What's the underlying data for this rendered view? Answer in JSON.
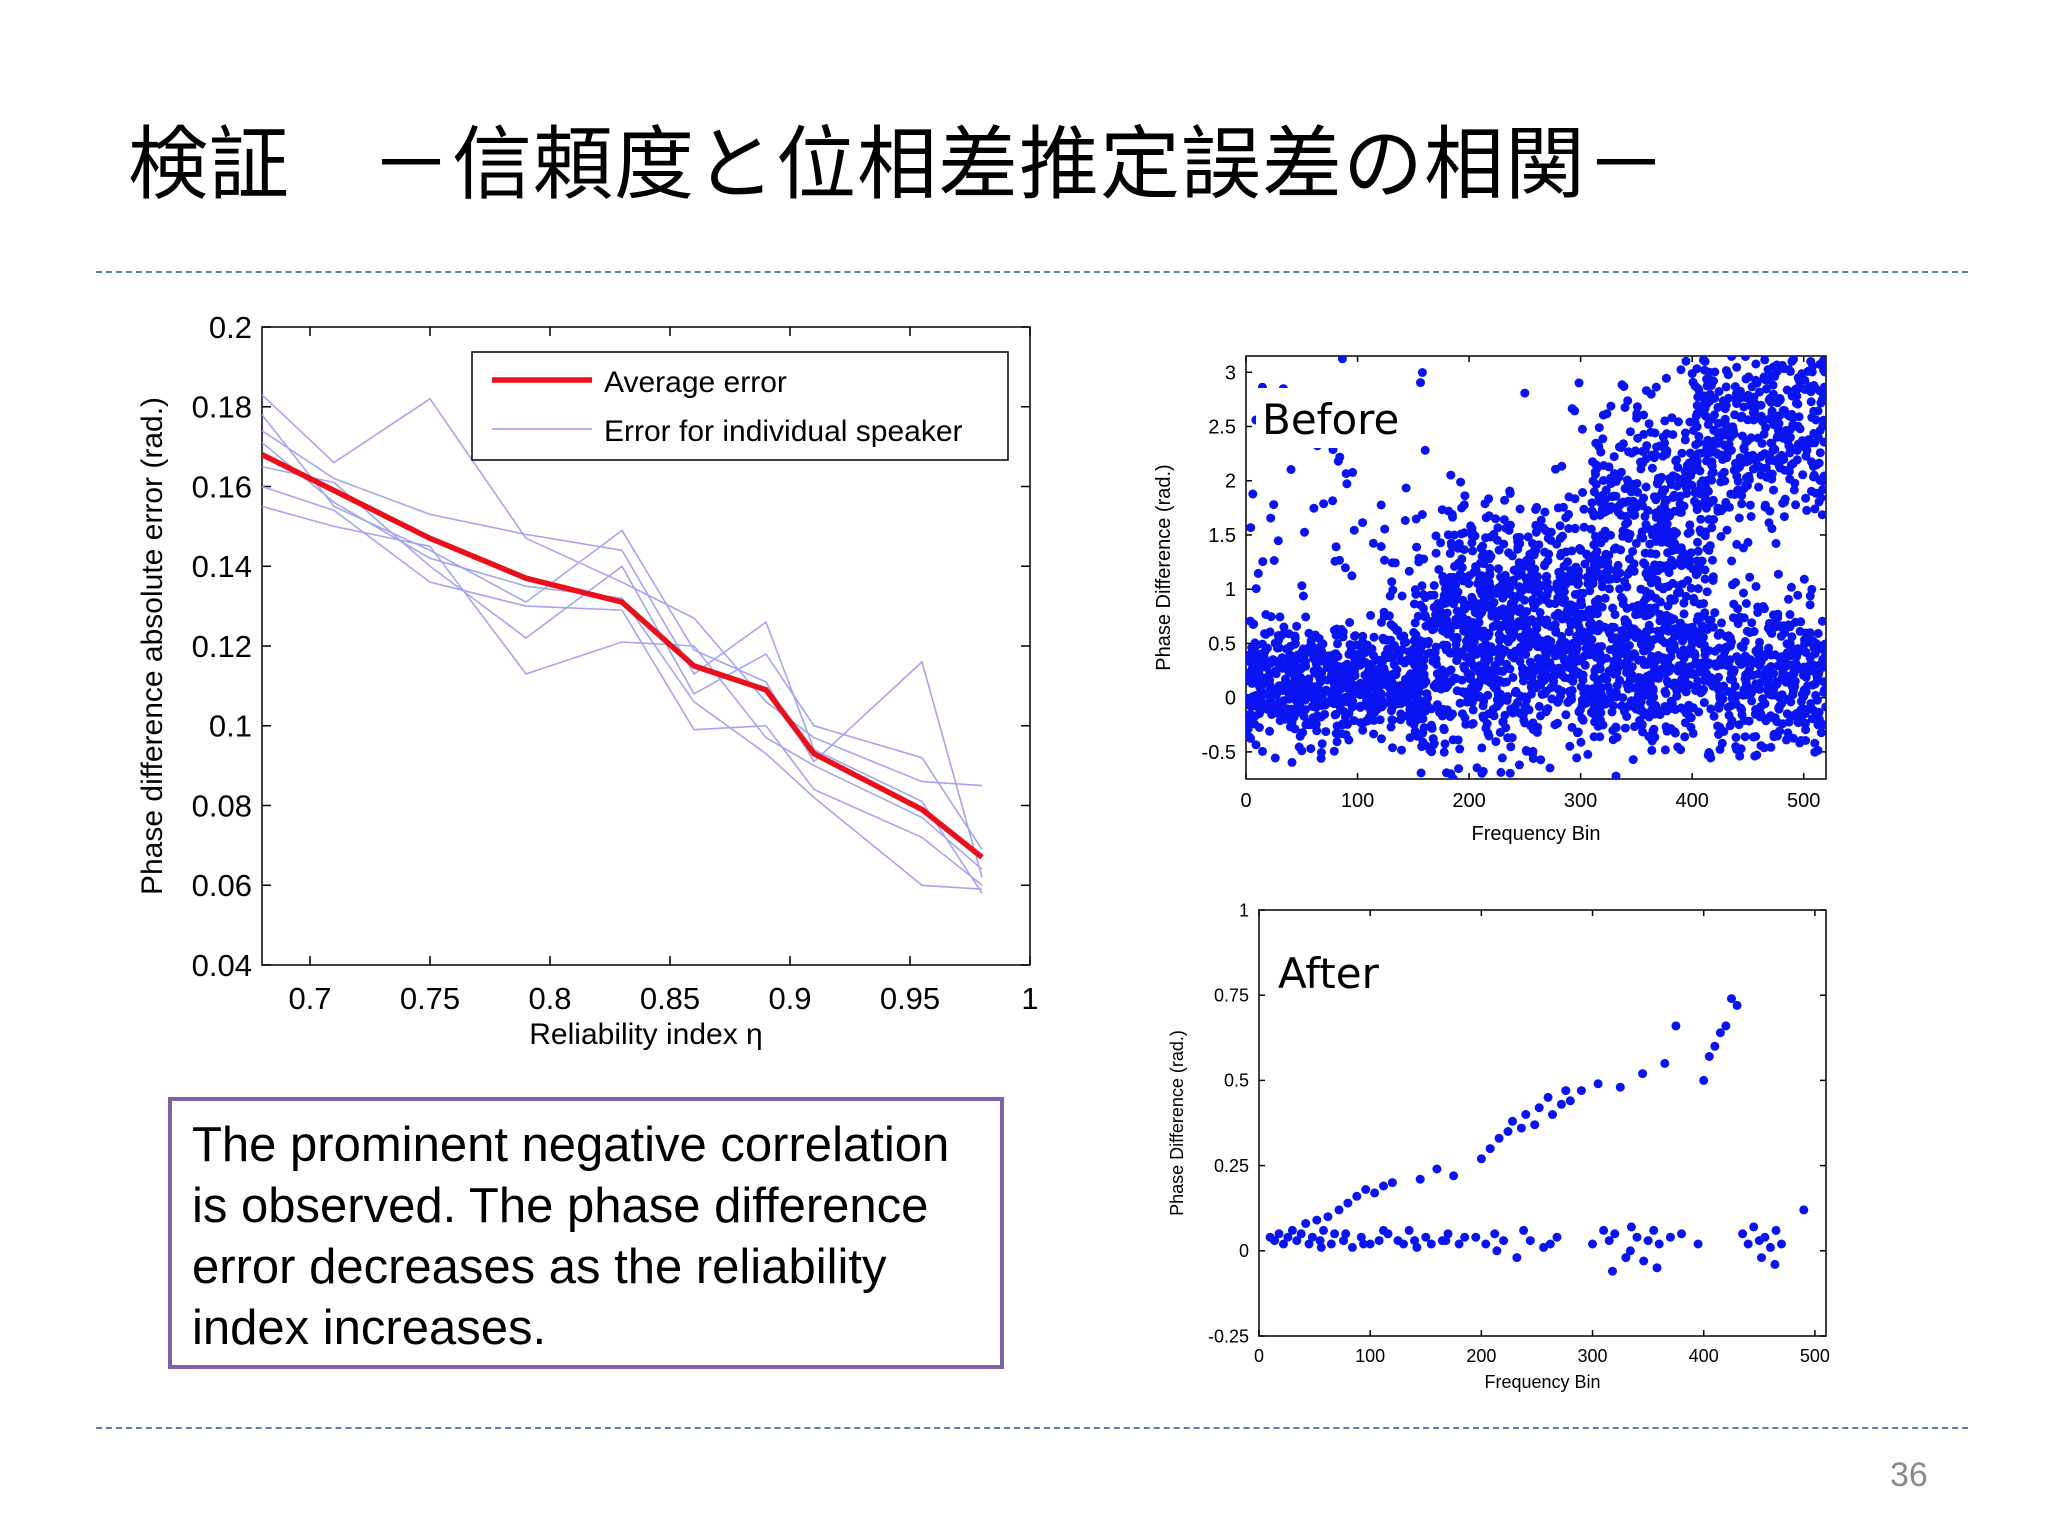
{
  "slide": {
    "title": "検証　－信頼度と位相差推定誤差の相関－",
    "callout_text": "The prominent negative correlation is observed. The phase difference error decreases as the reliability index increases.",
    "page_number": "36"
  },
  "colors": {
    "average_line": "#e8101a",
    "individual_lines": "#a3a6ee",
    "scatter_points": "#0a14f0",
    "callout_border": "#7e62a3",
    "divider": "#5b7fa6"
  },
  "chart_data": [
    {
      "type": "line",
      "title": "",
      "xlabel": "Reliability index η",
      "ylabel": "Phase difference absolute error (rad.)",
      "xlim": [
        0.68,
        1.0
      ],
      "ylim": [
        0.04,
        0.2
      ],
      "xticks": [
        0.7,
        0.75,
        0.8,
        0.85,
        0.9,
        0.95,
        1.0
      ],
      "xtick_labels": [
        "0.7",
        "0.75",
        "0.8",
        "0.85",
        "0.9",
        "0.95",
        "1"
      ],
      "yticks": [
        0.04,
        0.06,
        0.08,
        0.1,
        0.12,
        0.14,
        0.16,
        0.18,
        0.2
      ],
      "ytick_labels": [
        "0.04",
        "0.06",
        "0.08",
        "0.1",
        "0.12",
        "0.14",
        "0.16",
        "0.18",
        "0.2"
      ],
      "legend_position": "top-right",
      "x": [
        0.68,
        0.71,
        0.75,
        0.79,
        0.83,
        0.86,
        0.89,
        0.91,
        0.955,
        0.98
      ],
      "series": [
        {
          "name": "Average error",
          "role": "average",
          "values": [
            0.168,
            0.159,
            0.147,
            0.137,
            0.131,
            0.115,
            0.109,
            0.093,
            0.079,
            0.067
          ]
        },
        {
          "name": "Error for individual speaker",
          "role": "individual",
          "values": [
            0.183,
            0.166,
            0.182,
            0.147,
            0.136,
            0.127,
            0.106,
            0.097,
            0.086,
            0.085
          ]
        },
        {
          "name": "",
          "role": "individual",
          "values": [
            0.174,
            0.162,
            0.153,
            0.148,
            0.144,
            0.113,
            0.126,
            0.094,
            0.081,
            0.058
          ]
        },
        {
          "name": "",
          "role": "individual",
          "values": [
            0.165,
            0.161,
            0.14,
            0.122,
            0.14,
            0.108,
            0.118,
            0.1,
            0.092,
            0.069
          ]
        },
        {
          "name": "",
          "role": "individual",
          "values": [
            0.178,
            0.155,
            0.144,
            0.131,
            0.149,
            0.119,
            0.111,
            0.091,
            0.116,
            0.062
          ]
        },
        {
          "name": "",
          "role": "individual",
          "values": [
            0.16,
            0.154,
            0.136,
            0.13,
            0.129,
            0.099,
            0.1,
            0.084,
            0.072,
            0.06
          ]
        },
        {
          "name": "",
          "role": "individual",
          "values": [
            0.171,
            0.156,
            0.142,
            0.135,
            0.132,
            0.106,
            0.093,
            0.082,
            0.06,
            0.059
          ]
        },
        {
          "name": "",
          "role": "individual",
          "values": [
            0.155,
            0.15,
            0.145,
            0.113,
            0.121,
            0.12,
            0.097,
            0.09,
            0.077,
            0.064
          ]
        }
      ]
    },
    {
      "type": "scatter",
      "annotation": "Before",
      "xlabel": "Frequency Bin",
      "ylabel": "Phase Difference (rad.)",
      "xlim": [
        0,
        520
      ],
      "ylim": [
        -0.75,
        3.15
      ],
      "xticks": [
        0,
        100,
        200,
        300,
        400,
        500
      ],
      "xtick_labels": [
        "0",
        "100",
        "200",
        "300",
        "400",
        "500"
      ],
      "yticks": [
        -0.5,
        0,
        0.5,
        1,
        1.5,
        2,
        2.5,
        3
      ],
      "ytick_labels": [
        "-0.5",
        "0",
        "0.5",
        "1",
        "1.5",
        "2",
        "2.5",
        "3"
      ],
      "clusters": [
        {
          "x_range": [
            0,
            160
          ],
          "center": 0.15,
          "spread": 0.28,
          "count": 650,
          "seed": 11
        },
        {
          "x_range": [
            150,
            300
          ],
          "center": 0.35,
          "spread": 0.55,
          "count": 650,
          "seed": 12
        },
        {
          "x_range": [
            180,
            320
          ],
          "center": 1.0,
          "spread": 0.4,
          "count": 280,
          "seed": 13
        },
        {
          "x_range": [
            300,
            520
          ],
          "center": 0.2,
          "spread": 0.35,
          "count": 750,
          "seed": 14
        },
        {
          "x_range": [
            310,
            420
          ],
          "center": 1.6,
          "spread": 0.6,
          "count": 450,
          "seed": 15
        },
        {
          "x_range": [
            400,
            520
          ],
          "center": 2.5,
          "spread": 0.45,
          "count": 400,
          "seed": 16
        },
        {
          "x_range": [
            0,
            520
          ],
          "center": 1.2,
          "spread": 1.1,
          "count": 240,
          "seed": 17
        }
      ]
    },
    {
      "type": "scatter",
      "annotation": "After",
      "xlabel": "Frequency Bin",
      "ylabel": "Phase Difference (rad.)",
      "xlim": [
        0,
        510
      ],
      "ylim": [
        -0.25,
        1
      ],
      "xticks": [
        0,
        100,
        200,
        300,
        400,
        500
      ],
      "xtick_labels": [
        "0",
        "100",
        "200",
        "300",
        "400",
        "500"
      ],
      "yticks": [
        -0.25,
        0,
        0.25,
        0.5,
        0.75,
        1
      ],
      "ytick_labels": [
        "-0.25",
        "0",
        "0.25",
        "0.5",
        "0.75",
        "1"
      ],
      "points": [
        [
          10,
          0.04
        ],
        [
          14,
          0.03
        ],
        [
          18,
          0.05
        ],
        [
          22,
          0.02
        ],
        [
          26,
          0.04
        ],
        [
          30,
          0.06
        ],
        [
          34,
          0.03
        ],
        [
          38,
          0.05
        ],
        [
          42,
          0.08
        ],
        [
          45,
          0.02
        ],
        [
          48,
          0.04
        ],
        [
          52,
          0.09
        ],
        [
          55,
          0.03
        ],
        [
          58,
          0.06
        ],
        [
          62,
          0.1
        ],
        [
          65,
          0.02
        ],
        [
          68,
          0.05
        ],
        [
          72,
          0.12
        ],
        [
          76,
          0.03
        ],
        [
          80,
          0.14
        ],
        [
          84,
          0.01
        ],
        [
          88,
          0.16
        ],
        [
          92,
          0.04
        ],
        [
          96,
          0.18
        ],
        [
          100,
          0.02
        ],
        [
          104,
          0.17
        ],
        [
          108,
          0.03
        ],
        [
          112,
          0.19
        ],
        [
          116,
          0.05
        ],
        [
          120,
          0.2
        ],
        [
          125,
          0.03
        ],
        [
          130,
          0.02
        ],
        [
          135,
          0.06
        ],
        [
          140,
          0.03
        ],
        [
          145,
          0.21
        ],
        [
          150,
          0.04
        ],
        [
          155,
          0.02
        ],
        [
          160,
          0.24
        ],
        [
          165,
          0.03
        ],
        [
          170,
          0.05
        ],
        [
          175,
          0.22
        ],
        [
          180,
          0.02
        ],
        [
          185,
          0.04
        ],
        [
          195,
          0.04
        ],
        [
          200,
          0.27
        ],
        [
          204,
          0.02
        ],
        [
          208,
          0.3
        ],
        [
          212,
          0.05
        ],
        [
          216,
          0.33
        ],
        [
          220,
          0.03
        ],
        [
          224,
          0.35
        ],
        [
          228,
          0.38
        ],
        [
          232,
          -0.02
        ],
        [
          236,
          0.36
        ],
        [
          240,
          0.4
        ],
        [
          244,
          0.03
        ],
        [
          248,
          0.37
        ],
        [
          252,
          0.42
        ],
        [
          256,
          0.01
        ],
        [
          260,
          0.45
        ],
        [
          264,
          0.4
        ],
        [
          268,
          0.04
        ],
        [
          272,
          0.43
        ],
        [
          276,
          0.47
        ],
        [
          280,
          0.44
        ],
        [
          290,
          0.47
        ],
        [
          300,
          0.02
        ],
        [
          305,
          0.49
        ],
        [
          310,
          0.06
        ],
        [
          315,
          0.03
        ],
        [
          320,
          0.05
        ],
        [
          325,
          0.48
        ],
        [
          330,
          -0.02
        ],
        [
          335,
          0.07
        ],
        [
          340,
          0.04
        ],
        [
          345,
          0.52
        ],
        [
          350,
          0.03
        ],
        [
          355,
          0.06
        ],
        [
          360,
          0.02
        ],
        [
          365,
          0.55
        ],
        [
          370,
          0.04
        ],
        [
          375,
          0.66
        ],
        [
          380,
          0.05
        ],
        [
          395,
          0.02
        ],
        [
          400,
          0.5
        ],
        [
          405,
          0.57
        ],
        [
          410,
          0.6
        ],
        [
          415,
          0.64
        ],
        [
          420,
          0.66
        ],
        [
          425,
          0.74
        ],
        [
          430,
          0.72
        ],
        [
          435,
          0.05
        ],
        [
          440,
          0.02
        ],
        [
          445,
          0.07
        ],
        [
          450,
          0.03
        ],
        [
          455,
          0.04
        ],
        [
          460,
          0.01
        ],
        [
          465,
          0.06
        ],
        [
          470,
          0.02
        ],
        [
          490,
          0.12
        ],
        [
          56,
          0.01
        ],
        [
          78,
          0.05
        ],
        [
          94,
          0.02
        ],
        [
          112,
          0.06
        ],
        [
          142,
          0.01
        ],
        [
          168,
          0.03
        ],
        [
          214,
          0.0
        ],
        [
          238,
          0.06
        ],
        [
          262,
          0.02
        ],
        [
          318,
          -0.06
        ],
        [
          334,
          0.0
        ],
        [
          346,
          -0.03
        ],
        [
          358,
          -0.05
        ],
        [
          452,
          -0.02
        ],
        [
          464,
          -0.04
        ]
      ]
    }
  ]
}
